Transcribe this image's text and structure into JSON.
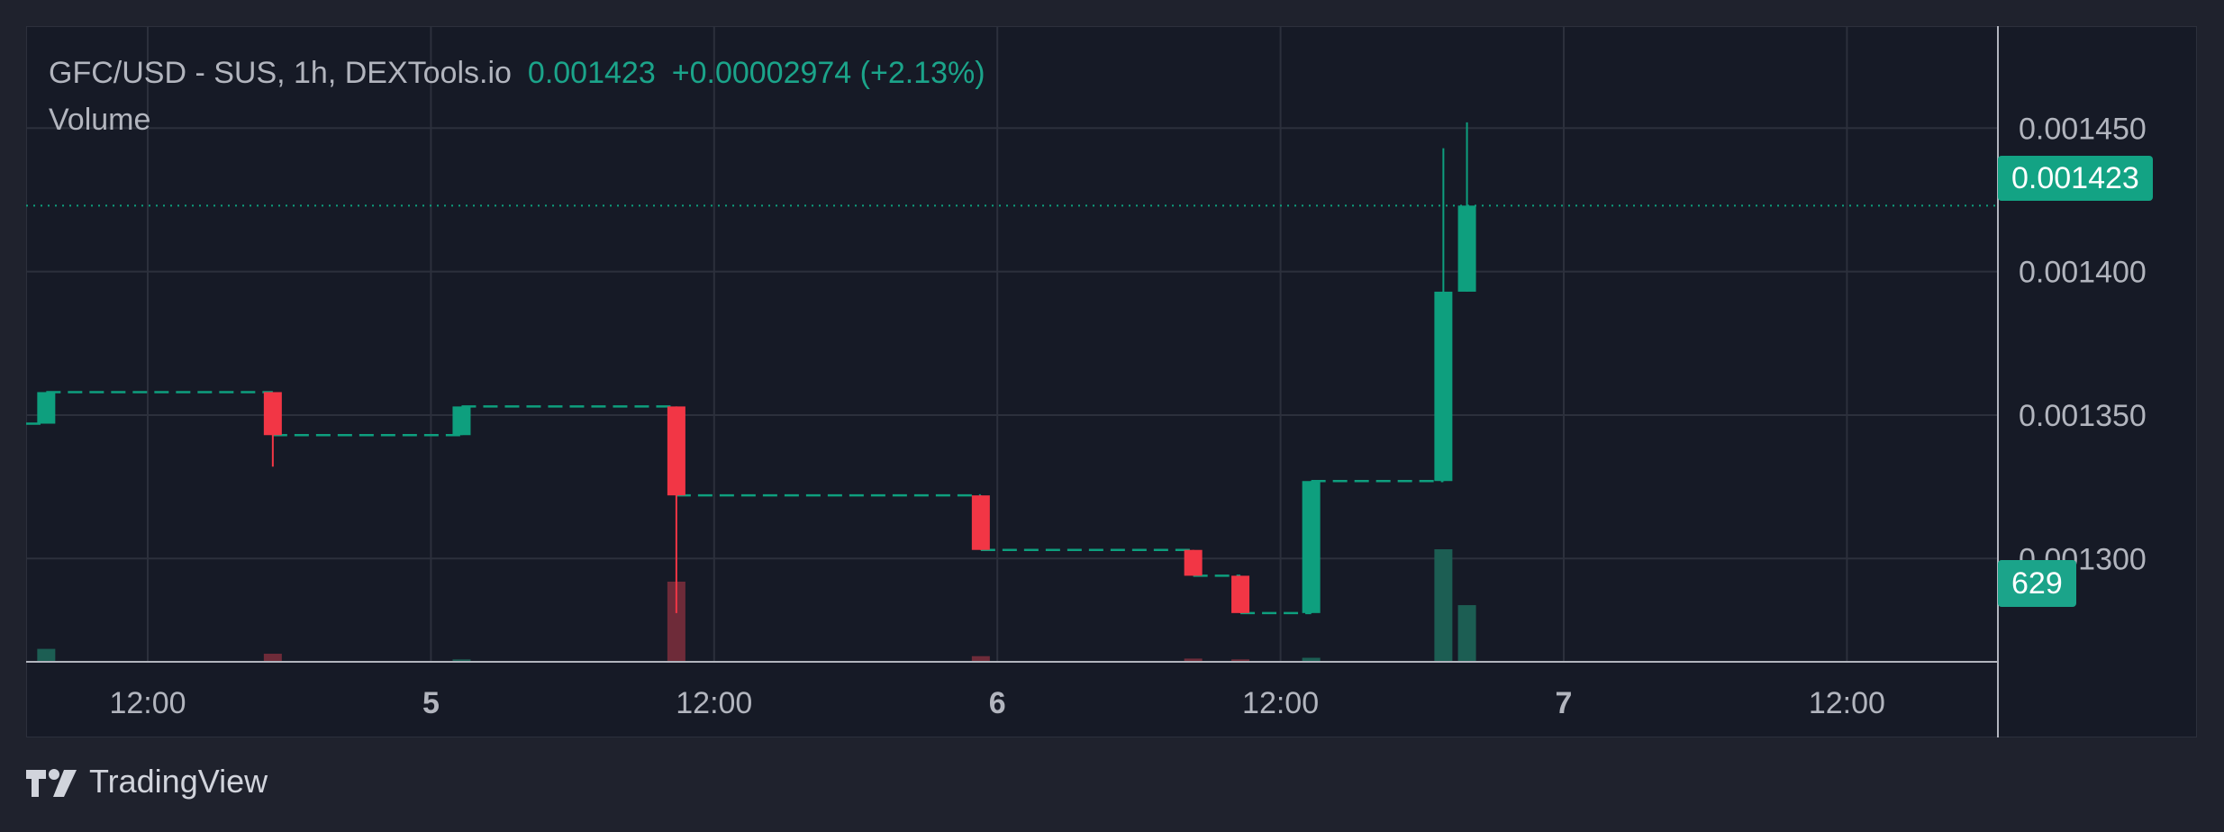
{
  "legend": {
    "symbol": "GFC/USD - SUS, 1h, DEXTools.io",
    "last": "0.001423",
    "change": "+0.00002974 (+2.13%)",
    "volume_label": "Volume"
  },
  "price_tag": "0.001423",
  "volume_tag": "629",
  "brand": "TradingView",
  "icons": {
    "logo": "tradingview-logo-icon"
  },
  "colors": {
    "up": "#0e9f7e",
    "down": "#f23645",
    "up_volume": "#1c5e53",
    "down_volume": "#6e2b39",
    "grid": "#2c303c",
    "text": "#b2b5be",
    "background": "#161a26"
  },
  "chart_data": {
    "type": "candlestick",
    "title": "GFC/USD - SUS, 1h, DEXTools.io",
    "timeframe": "1h",
    "x_ticks": [
      "12:00",
      "5",
      "12:00",
      "6",
      "12:00",
      "7",
      "12:00"
    ],
    "y_ticks": [
      "0.001450",
      "0.001400",
      "0.001350",
      "0.001300"
    ],
    "ylim": [
      0.001264,
      0.001473
    ],
    "last_price": 0.001423,
    "grid": true,
    "series": [
      {
        "name": "Price",
        "candles": [
          {
            "t": -4.3,
            "o": 0.001347,
            "h": 0.001358,
            "l": 0.001347,
            "c": 0.001358
          },
          {
            "t": 5.3,
            "o": 0.001358,
            "h": 0.001358,
            "l": 0.001332,
            "c": 0.001343
          },
          {
            "t": 13.3,
            "o": 0.001343,
            "h": 0.001353,
            "l": 0.001343,
            "c": 0.001353
          },
          {
            "t": 22.4,
            "o": 0.001353,
            "h": 0.001353,
            "l": 0.001281,
            "c": 0.001322
          },
          {
            "t": 35.3,
            "o": 0.001322,
            "h": 0.001322,
            "l": 0.001303,
            "c": 0.001303
          },
          {
            "t": 44.3,
            "o": 0.001303,
            "h": 0.001303,
            "l": 0.001294,
            "c": 0.001294
          },
          {
            "t": 46.3,
            "o": 0.001294,
            "h": 0.001294,
            "l": 0.001281,
            "c": 0.001281
          },
          {
            "t": 49.3,
            "o": 0.001281,
            "h": 0.001327,
            "l": 0.001281,
            "c": 0.001327
          },
          {
            "t": 54.9,
            "o": 0.001327,
            "h": 0.001443,
            "l": 0.001327,
            "c": 0.001393
          },
          {
            "t": 55.9,
            "o": 0.001393,
            "h": 0.001452,
            "l": 0.001393,
            "c": 0.001423
          }
        ],
        "gaps": [
          {
            "from": -24,
            "to": -4.3,
            "price": 0.001347
          },
          {
            "from": -4.3,
            "to": 5.3,
            "price": 0.001358
          },
          {
            "from": 5.3,
            "to": 13.3,
            "price": 0.001343
          },
          {
            "from": 13.3,
            "to": 22.4,
            "price": 0.001353
          },
          {
            "from": 22.4,
            "to": 35.3,
            "price": 0.001322
          },
          {
            "from": 35.3,
            "to": 44.3,
            "price": 0.001303
          },
          {
            "from": 44.3,
            "to": 46.3,
            "price": 0.001294
          },
          {
            "from": 46.3,
            "to": 49.3,
            "price": 0.001281
          },
          {
            "from": 49.3,
            "to": 54.9,
            "price": 0.001327
          }
        ]
      },
      {
        "name": "Volume",
        "bars": [
          {
            "t": -4.3,
            "v": 16,
            "dir": "up"
          },
          {
            "t": 5.3,
            "v": 10,
            "dir": "down"
          },
          {
            "t": 13.3,
            "v": 3,
            "dir": "up"
          },
          {
            "t": 22.4,
            "v": 99,
            "dir": "down"
          },
          {
            "t": 35.3,
            "v": 7,
            "dir": "down"
          },
          {
            "t": 44.3,
            "v": 4,
            "dir": "down"
          },
          {
            "t": 46.3,
            "v": 3,
            "dir": "down"
          },
          {
            "t": 49.3,
            "v": 5,
            "dir": "up"
          },
          {
            "t": 54.9,
            "v": 139,
            "dir": "up"
          },
          {
            "t": 55.9,
            "v": 70,
            "dir": "up"
          }
        ],
        "last": 629
      }
    ]
  }
}
